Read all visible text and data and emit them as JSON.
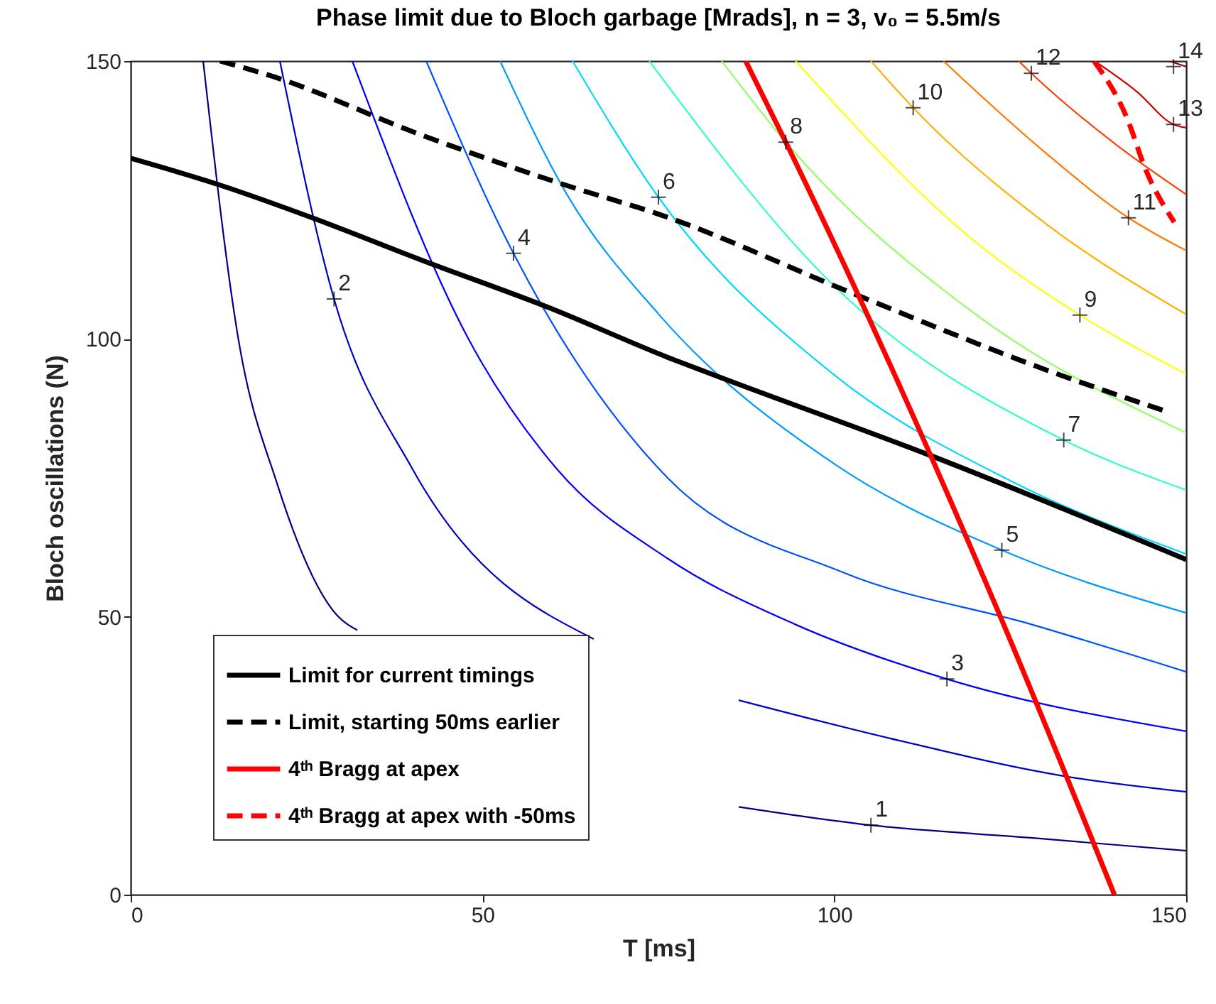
{
  "chart_data": {
    "type": "line",
    "title": "Phase limit due to Bloch garbage [Mrads], n = 3, v₀ = 5.5m/s",
    "xlabel": "T [ms]",
    "ylabel": "Bloch oscillations (N)",
    "xlim": [
      0,
      150
    ],
    "ylim": [
      0,
      150
    ],
    "xticks": [
      0,
      50,
      100,
      150
    ],
    "yticks": [
      0,
      50,
      100,
      150
    ],
    "legend": "bottom left",
    "series": [
      {
        "color": "#000080",
        "x": [
          10.3,
          15.3,
          20.8,
          29.3,
          32.2,
          60,
          86.4,
          105.2,
          128.2,
          150
        ],
        "values": [
          150,
          100,
          74,
          50.3,
          47.6,
          null,
          15.8,
          12.5,
          10.2,
          7.9
        ]
      },
      {
        "color": "#0000c0",
        "x": [
          21.2,
          28.9,
          40,
          65.8,
          75,
          86.4,
          108,
          132.8,
          150
        ],
        "values": [
          150,
          107.2,
          76.7,
          46,
          null,
          35,
          28.1,
          21.3,
          18.5
        ]
      },
      {
        "color": "#0000ff",
        "x": [
          31.5,
          48,
          60.5,
          76.3,
          94.5,
          116,
          150
        ],
        "values": [
          150,
          100,
          76.7,
          60.5,
          48.6,
          38.8,
          29.4
        ]
      },
      {
        "color": "#0050ff",
        "x": [
          42,
          54.4,
          76.3,
          101.2,
          128.1,
          150
        ],
        "values": [
          150,
          115.4,
          75,
          58,
          48.6,
          40.1
        ]
      },
      {
        "color": "#0099ff",
        "x": [
          52.5,
          62,
          75,
          100,
          123.8,
          150
        ],
        "values": [
          150,
          126,
          104.5,
          77.5,
          62,
          50.7
        ]
      },
      {
        "color": "#00d8ff",
        "x": [
          62.8,
          75,
          100,
          125,
          150
        ],
        "values": [
          150,
          125.5,
          93.5,
          74.5,
          61.3
        ]
      },
      {
        "color": "#30ffc8",
        "x": [
          73.7,
          100,
          132.6,
          150
        ],
        "values": [
          150,
          109.5,
          81.8,
          72.8
        ]
      },
      {
        "color": "#90ff60",
        "x": [
          84,
          93.1,
          120,
          150
        ],
        "values": [
          150,
          135.4,
          104.5,
          83.1
        ]
      },
      {
        "color": "#ffff00",
        "x": [
          94.5,
          120,
          134.9,
          150
        ],
        "values": [
          150,
          117.5,
          104.3,
          93.7
        ]
      },
      {
        "color": "#ffb000",
        "x": [
          105.2,
          111.2,
          130,
          150
        ],
        "values": [
          150,
          141.6,
          120.8,
          104.4
        ]
      },
      {
        "color": "#ff7800",
        "x": [
          115.5,
          130,
          141.8,
          150
        ],
        "values": [
          150,
          133.5,
          121.8,
          115.9
        ]
      },
      {
        "color": "#ff4000",
        "x": [
          126.2,
          128,
          140,
          150
        ],
        "values": [
          150,
          147.8,
          135,
          126
        ]
      },
      {
        "color": "#d00000",
        "x": [
          137,
          143,
          148.2,
          150
        ],
        "values": [
          150,
          144.5,
          138.6,
          138
        ]
      },
      {
        "color": "#900000",
        "x": [
          147.6,
          150
        ],
        "values": [
          150,
          149
        ]
      },
      {
        "name": "Limit for current timings",
        "color": "#000000",
        "line_style": "solid",
        "x": [
          0,
          12.4,
          25.8,
          41.3,
          59.5,
          76.3,
          84.4,
          113.3,
          150
        ],
        "values": [
          132.5,
          127.8,
          121.8,
          114.2,
          105.6,
          96.7,
          92.8,
          79.2,
          60.3
        ]
      },
      {
        "name": "Limit, starting 50ms earlier",
        "color": "#000000",
        "line_style": "dashed",
        "x": [
          12.7,
          19.8,
          41.3,
          61.5,
          75.6,
          102.6,
          130.8,
          147.3
        ],
        "values": [
          150,
          147.4,
          136.7,
          127.8,
          122.2,
          108.2,
          94.1,
          86.9
        ]
      },
      {
        "name": "4ᵗʰ Bragg at apex",
        "color": "#ff0000",
        "line_style": "solid",
        "x": [
          87.4,
          93.1,
          123.8,
          139.8
        ],
        "values": [
          150,
          135.4,
          49.4,
          0
        ]
      },
      {
        "name": "4ᵗʰ Bragg at apex with -50ms",
        "color": "#ff0000",
        "line_style": "dashed",
        "x": [
          136.9,
          141.6,
          144.3,
          148.3
        ],
        "values": [
          150,
          139.7,
          130.3,
          121
        ]
      }
    ],
    "annotations": [
      {
        "text": "1",
        "x": 105.2,
        "y": 12.5
      },
      {
        "text": "2",
        "x": 28.9,
        "y": 107.2
      },
      {
        "text": "3",
        "x": 116,
        "y": 38.8
      },
      {
        "text": "4",
        "x": 54.4,
        "y": 115.4
      },
      {
        "text": "5",
        "x": 123.8,
        "y": 62
      },
      {
        "text": "6",
        "x": 75,
        "y": 125.5
      },
      {
        "text": "7",
        "x": 132.6,
        "y": 81.8
      },
      {
        "text": "8",
        "x": 93.1,
        "y": 135.4
      },
      {
        "text": "9",
        "x": 134.9,
        "y": 104.3
      },
      {
        "text": "10",
        "x": 111.2,
        "y": 141.6
      },
      {
        "text": "11",
        "x": 141.8,
        "y": 121.8
      },
      {
        "text": "12",
        "x": 128,
        "y": 147.8
      },
      {
        "text": "13",
        "x": 148.2,
        "y": 138.6
      },
      {
        "text": "14",
        "x": 148.2,
        "y": 149
      }
    ]
  }
}
